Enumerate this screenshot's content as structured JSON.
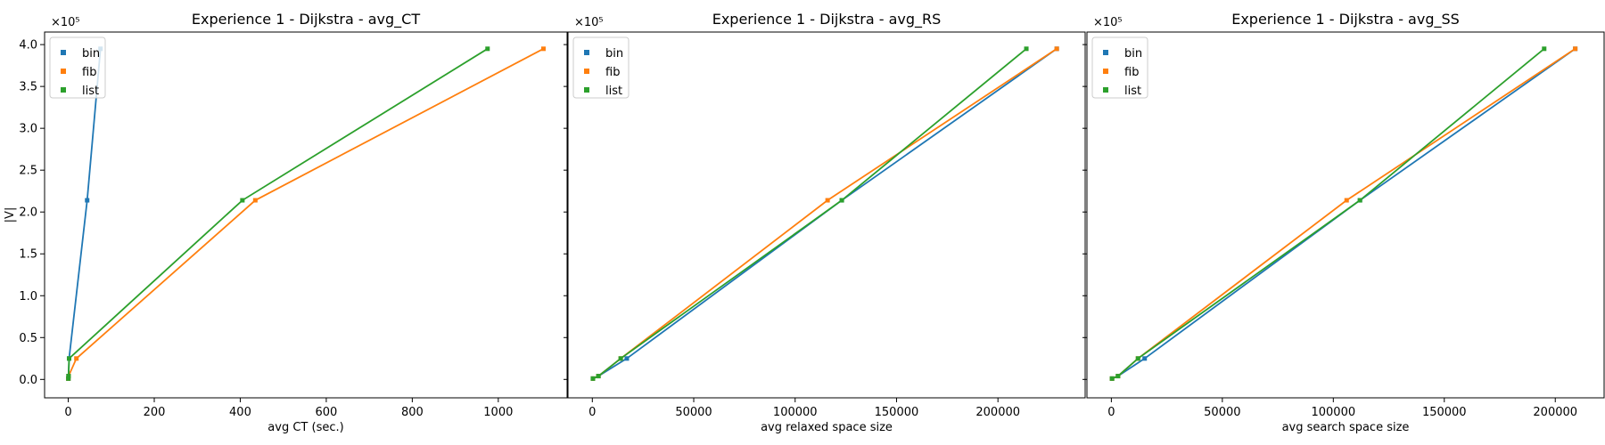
{
  "chart_data": [
    {
      "type": "line",
      "title": "Experience 1 - Dijkstra - avg_CT",
      "xlabel": "avg CT (sec.)",
      "ylabel": "|V|",
      "y_multiplier_label": "×10⁵",
      "xlim": [
        -55,
        1160
      ],
      "ylim": [
        -22000,
        415000
      ],
      "xticks": [
        0,
        200,
        400,
        600,
        800,
        1000
      ],
      "xtick_labels": [
        "0",
        "200",
        "400",
        "600",
        "800",
        "1000"
      ],
      "yticks": [
        0,
        50000,
        100000,
        150000,
        200000,
        250000,
        300000,
        350000,
        400000
      ],
      "ytick_labels": [
        "0.0",
        "0.5",
        "1.0",
        "1.5",
        "2.0",
        "2.5",
        "3.0",
        "3.5",
        "4.0"
      ],
      "grid": false,
      "legend": "upper-left",
      "series": [
        {
          "name": "bin",
          "color": "#1f77b4",
          "x": [
            0.3,
            0.6,
            2,
            44,
            75
          ],
          "y": [
            1000,
            4000,
            25000,
            214000,
            395000
          ]
        },
        {
          "name": "fib",
          "color": "#ff7f0e",
          "x": [
            0.3,
            0.8,
            19,
            435,
            1105
          ],
          "y": [
            1000,
            4000,
            25000,
            214000,
            395000
          ]
        },
        {
          "name": "list",
          "color": "#2ca02c",
          "x": [
            0.3,
            0.8,
            2,
            405,
            975
          ],
          "y": [
            1000,
            4000,
            25000,
            214000,
            395000
          ]
        }
      ]
    },
    {
      "type": "line",
      "title": "Experience 1 - Dijkstra - avg_RS",
      "xlabel": "avg relaxed space size",
      "ylabel": "",
      "y_multiplier_label": "×10⁵",
      "xlim": [
        -12000,
        243000
      ],
      "ylim": [
        -22000,
        415000
      ],
      "xticks": [
        0,
        50000,
        100000,
        150000,
        200000
      ],
      "xtick_labels": [
        "0",
        "50000",
        "100000",
        "150000",
        "200000"
      ],
      "yticks": [],
      "ytick_labels": [],
      "grid": false,
      "legend": "upper-left",
      "series": [
        {
          "name": "bin",
          "color": "#1f77b4",
          "x": [
            300,
            3000,
            17000,
            123000,
            229000
          ],
          "y": [
            1000,
            4000,
            25000,
            214000,
            395000
          ]
        },
        {
          "name": "fib",
          "color": "#ff7f0e",
          "x": [
            300,
            3000,
            14000,
            116000,
            229000
          ],
          "y": [
            1000,
            4000,
            25000,
            214000,
            395000
          ]
        },
        {
          "name": "list",
          "color": "#2ca02c",
          "x": [
            300,
            3000,
            14000,
            123000,
            214000
          ],
          "y": [
            1000,
            4000,
            25000,
            214000,
            395000
          ]
        }
      ]
    },
    {
      "type": "line",
      "title": "Experience 1 - Dijkstra - avg_SS",
      "xlabel": "avg search space size",
      "ylabel": "",
      "y_multiplier_label": "×10⁵",
      "xlim": [
        -11000,
        222000
      ],
      "ylim": [
        -22000,
        415000
      ],
      "xticks": [
        0,
        50000,
        100000,
        150000,
        200000
      ],
      "xtick_labels": [
        "0",
        "50000",
        "100000",
        "150000",
        "200000"
      ],
      "yticks": [],
      "ytick_labels": [],
      "grid": false,
      "legend": "upper-left",
      "series": [
        {
          "name": "bin",
          "color": "#1f77b4",
          "x": [
            300,
            3000,
            15000,
            112000,
            209000
          ],
          "y": [
            1000,
            4000,
            25000,
            214000,
            395000
          ]
        },
        {
          "name": "fib",
          "color": "#ff7f0e",
          "x": [
            300,
            3000,
            12000,
            106000,
            209000
          ],
          "y": [
            1000,
            4000,
            25000,
            214000,
            395000
          ]
        },
        {
          "name": "list",
          "color": "#2ca02c",
          "x": [
            300,
            3000,
            12000,
            112000,
            195000
          ],
          "y": [
            1000,
            4000,
            25000,
            214000,
            395000
          ]
        }
      ]
    }
  ]
}
